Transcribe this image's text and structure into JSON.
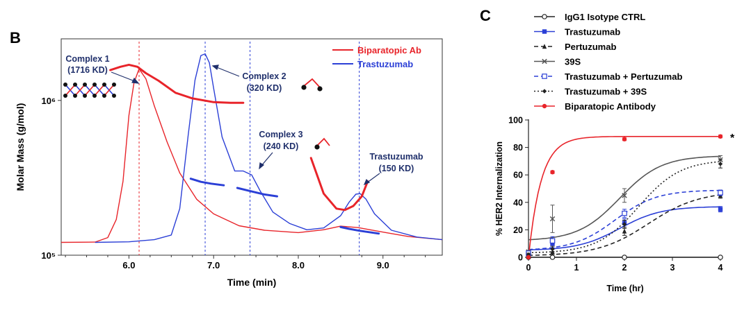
{
  "panel_b": {
    "letter": "B",
    "legend": [
      {
        "label": "Biparatopic Ab",
        "color": "#e8242a"
      },
      {
        "label": "Trastuzumab",
        "color": "#2b3fd6"
      }
    ],
    "annotations": [
      {
        "name": "complex-1",
        "line1": "Complex 1",
        "line2": "(1716 KD)"
      },
      {
        "name": "complex-2",
        "line1": "Complex 2",
        "line2": "(320 KD)"
      },
      {
        "name": "complex-3",
        "line1": "Complex 3",
        "line2": "(240 KD)"
      },
      {
        "name": "trastuzumab-peak",
        "line1": "Trastuzumab",
        "line2": "(150 KD)"
      }
    ]
  },
  "panel_c": {
    "letter": "C",
    "significance": "*"
  },
  "colors": {
    "red": "#e8242a",
    "blue": "#2b3fd6",
    "dark": "#222222",
    "annot": "#1f2f6b"
  },
  "chart_data": [
    {
      "type": "line",
      "title": "",
      "xlabel": "Time (min)",
      "ylabel": "Molar Mass (g/mol)",
      "xlim": [
        5.2,
        9.7
      ],
      "ylim": [
        100000,
        2500000
      ],
      "y_scale": "log",
      "x_ticks": [
        6.0,
        7.0,
        8.0,
        9.0
      ],
      "x_tick_labels": [
        "6.0",
        "7.0",
        "8.0",
        "9.0"
      ],
      "y_ticks": [
        100000,
        1000000
      ],
      "y_tick_labels": [
        "10⁵",
        "10⁶"
      ],
      "series": [
        {
          "name": "Biparatopic Ab",
          "role": "signal",
          "x": [
            5.2,
            5.6,
            5.75,
            5.85,
            5.93,
            6.0,
            6.06,
            6.12,
            6.2,
            6.3,
            6.45,
            6.6,
            6.8,
            7.0,
            7.3,
            7.6,
            8.0,
            8.3,
            8.5,
            8.7,
            9.0,
            9.3,
            9.7
          ],
          "y": [
            121000,
            121500,
            130000,
            170000,
            300000,
            800000,
            1300000,
            1600000,
            1380000,
            920000,
            540000,
            340000,
            230000,
            185000,
            155000,
            145000,
            140000,
            146000,
            154000,
            151000,
            141000,
            132000,
            126000
          ]
        },
        {
          "name": "Trastuzumab",
          "role": "signal",
          "x": [
            5.6,
            6.0,
            6.3,
            6.5,
            6.6,
            6.7,
            6.78,
            6.85,
            6.9,
            6.95,
            7.0,
            7.1,
            7.25,
            7.35,
            7.45,
            7.55,
            7.7,
            7.9,
            8.1,
            8.3,
            8.5,
            8.6,
            8.68,
            8.73,
            8.8,
            8.9,
            9.1,
            9.4,
            9.7
          ],
          "y": [
            121000,
            122000,
            126000,
            135000,
            200000,
            600000,
            1350000,
            1950000,
            2000000,
            1750000,
            1200000,
            580000,
            350000,
            350000,
            330000,
            260000,
            190000,
            160000,
            146000,
            150000,
            180000,
            220000,
            248000,
            250000,
            230000,
            185000,
            145000,
            131000,
            126000
          ]
        },
        {
          "name": "Biparatopic Ab",
          "role": "molar-mass",
          "x": [
            5.78,
            5.9,
            6.0,
            6.1,
            6.2,
            6.35,
            6.55,
            6.75,
            7.0,
            7.2,
            7.35
          ],
          "y": [
            1570000,
            1650000,
            1700000,
            1650000,
            1500000,
            1340000,
            1120000,
            1030000,
            975000,
            965000,
            965000
          ]
        },
        {
          "name": "Biparatopic Ab",
          "role": "molar-mass",
          "x": [
            8.15,
            8.3,
            8.45,
            8.55,
            8.65,
            8.75,
            8.82
          ],
          "y": [
            425000,
            250000,
            200000,
            196000,
            208000,
            240000,
            300000
          ]
        },
        {
          "name": "Trastuzumab",
          "role": "molar-mass",
          "x": [
            6.73,
            6.85,
            6.97,
            7.12
          ],
          "y": [
            312000,
            298000,
            290000,
            283000
          ]
        },
        {
          "name": "Trastuzumab",
          "role": "molar-mass",
          "x": [
            7.28,
            7.45,
            7.6,
            7.75
          ],
          "y": [
            272000,
            258000,
            247000,
            240000
          ]
        },
        {
          "name": "Trastuzumab",
          "role": "molar-mass",
          "x": [
            8.5,
            8.6,
            8.72,
            8.95
          ],
          "y": [
            152000,
            148000,
            144000,
            138000
          ]
        }
      ],
      "reference_lines": [
        {
          "axis": "x",
          "value": 6.12,
          "color": "red"
        },
        {
          "axis": "x",
          "value": 6.9,
          "color": "blue"
        },
        {
          "axis": "x",
          "value": 7.43,
          "color": "blue"
        },
        {
          "axis": "x",
          "value": 8.72,
          "color": "blue"
        }
      ]
    },
    {
      "type": "line",
      "title": "",
      "xlabel": "Time (hr)",
      "ylabel": "% HER2 Internalization",
      "xlim": [
        0,
        4
      ],
      "ylim": [
        0,
        100
      ],
      "x_ticks": [
        0,
        1,
        2,
        3,
        4
      ],
      "x_tick_labels": [
        "0",
        "1",
        "2",
        "3",
        "4"
      ],
      "y_ticks": [
        0,
        20,
        40,
        60,
        80,
        100
      ],
      "y_tick_labels": [
        "0",
        "20",
        "40",
        "60",
        "80",
        "100"
      ],
      "legend_position": "top",
      "series": [
        {
          "name": "IgG1 Isotype CTRL",
          "color": "#222222",
          "dash": "solid",
          "marker": "open-circle",
          "points": [
            [
              0,
              0,
              0
            ],
            [
              0.5,
              0,
              0
            ],
            [
              2,
              0,
              0
            ],
            [
              4,
              0,
              0
            ]
          ],
          "fit": {
            "y0": 0,
            "ymax": 0,
            "k": 1,
            "t50": 2
          }
        },
        {
          "name": "Trastuzumab",
          "color": "#2b3fd6",
          "dash": "solid",
          "marker": "square",
          "points": [
            [
              0,
              2,
              1
            ],
            [
              0.5,
              10,
              3
            ],
            [
              2,
              25,
              3
            ],
            [
              4,
              35,
              2
            ]
          ],
          "fit": {
            "y0": 5,
            "ymax": 37,
            "k": 2.3,
            "t50": 1.9
          }
        },
        {
          "name": "Pertuzumab",
          "color": "#222222",
          "dash": "dash",
          "marker": "triangle",
          "points": [
            [
              0,
              1,
              1
            ],
            [
              0.5,
              4,
              2
            ],
            [
              2,
              19,
              3
            ],
            [
              4,
              45,
              2
            ]
          ],
          "fit": {
            "y0": 1,
            "ymax": 48,
            "k": 1.9,
            "t50": 2.5
          }
        },
        {
          "name": "39S",
          "color": "#555555",
          "dash": "solid",
          "marker": "x",
          "points": [
            [
              0,
              4,
              1
            ],
            [
              0.5,
              28,
              10
            ],
            [
              2,
              45,
              5
            ],
            [
              4,
              71,
              3
            ]
          ],
          "fit": {
            "y0": 12,
            "ymax": 74,
            "k": 2.3,
            "t50": 1.9
          }
        },
        {
          "name": "Trastuzumab + Pertuzumab",
          "color": "#2b3fd6",
          "dash": "dash",
          "marker": "open-square",
          "points": [
            [
              0,
              3,
              1
            ],
            [
              0.5,
              12,
              3
            ],
            [
              2,
              32,
              3
            ],
            [
              4,
              47,
              2
            ]
          ],
          "fit": {
            "y0": 5,
            "ymax": 49,
            "k": 2.3,
            "t50": 1.8
          }
        },
        {
          "name": "Trastuzumab + 39S",
          "color": "#222222",
          "dash": "dot",
          "marker": "diamond",
          "points": [
            [
              0,
              2,
              1
            ],
            [
              0.5,
              6,
              2
            ],
            [
              2,
              24,
              3
            ],
            [
              4,
              68,
              3
            ]
          ],
          "fit": {
            "y0": 3,
            "ymax": 71,
            "k": 2.3,
            "t50": 2.3
          }
        },
        {
          "name": "Biparatopic Antibody",
          "color": "#e8242a",
          "dash": "solid",
          "marker": "circle",
          "points": [
            [
              0,
              0,
              0
            ],
            [
              0.5,
              62,
              1
            ],
            [
              2,
              86,
              1
            ],
            [
              4,
              88,
              1
            ]
          ],
          "fit": {
            "type": "exp",
            "ymax": 88,
            "k": 3.8
          }
        }
      ]
    }
  ]
}
